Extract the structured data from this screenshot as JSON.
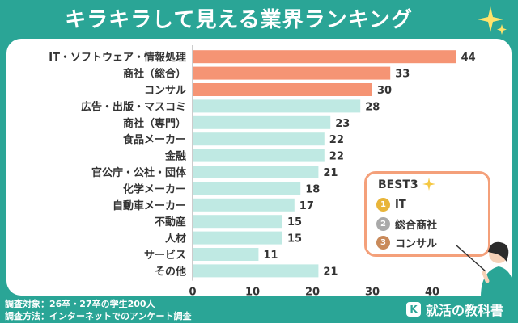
{
  "title": "キラキラして見える業界ランキング",
  "chart_data": {
    "type": "bar",
    "orientation": "horizontal",
    "categories": [
      "IT・ソフトウェア・情報処理",
      "商社（総合）",
      "コンサル",
      "広告・出版・マスコミ",
      "商社（専門）",
      "食品メーカー",
      "金融",
      "官公庁・公社・団体",
      "化学メーカー",
      "自動車メーカー",
      "不動産",
      "人材",
      "サービス",
      "その他"
    ],
    "values": [
      44,
      33,
      30,
      28,
      23,
      22,
      22,
      21,
      18,
      17,
      15,
      15,
      11,
      21
    ],
    "highlight_top": 3,
    "xlim": [
      0,
      50
    ],
    "xticks": [
      0,
      10,
      20,
      30,
      40,
      50
    ],
    "x_unit": "(%)",
    "colors": {
      "highlight": "#f59474",
      "normal": "#bfe9e3"
    }
  },
  "best": {
    "title": "BEST3",
    "items": [
      {
        "rank": "1",
        "label": "IT",
        "color": "#e8b53a"
      },
      {
        "rank": "2",
        "label": "総合商社",
        "color": "#a9a9a9"
      },
      {
        "rank": "3",
        "label": "コンサル",
        "color": "#c98a5a"
      }
    ]
  },
  "footer": {
    "line1": "調査対象：26卒・27卒の学生200人",
    "line2": "調査方法：インターネットでのアンケート調査"
  },
  "brand": {
    "name": "就活の教科書",
    "icon": "k-logo-icon"
  }
}
